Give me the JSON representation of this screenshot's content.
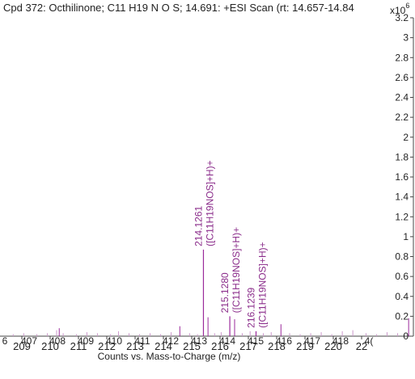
{
  "title": "Cpd 372: Octhilinone; C11 H19 N O S; 14.691: +ESI Scan (rt: 14.657-14.84",
  "y_multiplier": {
    "base": "x10",
    "exponent": "6"
  },
  "chart_data": {
    "type": "bar",
    "title": "Cpd 372: Octhilinone; C11 H19 N O S; 14.691: +ESI Scan (rt: 14.657-14.84",
    "xlabel": "Counts vs. Mass-to-Charge (m/z)",
    "ylabel": "",
    "xlim": [
      206.4,
      222.1
    ],
    "ylim": [
      0,
      3.2
    ],
    "y_ticks": [
      0,
      0.2,
      0.4,
      0.6,
      0.8,
      1,
      1.2,
      1.4,
      1.6,
      1.8,
      2,
      2.2,
      2.4,
      2.6,
      2.8,
      3,
      3.2
    ],
    "y_tick_labels": [
      "0",
      "0.2",
      "0.4",
      "0.6",
      "0.8",
      "1",
      "1.2",
      "1.4",
      "1.6",
      "1.8",
      "2",
      "2.2",
      "2.4",
      "2.6",
      "2.8",
      "3",
      "3.2"
    ],
    "x_ticks_lower": [
      209,
      210,
      211,
      212,
      213,
      214,
      215,
      216,
      217,
      218,
      219,
      220,
      22
    ],
    "x_ticks_upper": [
      "6",
      "407",
      "408",
      "409",
      "410",
      "411",
      "412",
      "413",
      "414",
      "415",
      "416",
      "417",
      "418",
      "4("
    ],
    "grid": false,
    "legend": "none",
    "peak_color": "#9b2a9b",
    "label_color": "#8a2b8a",
    "noise_color": "#cc99cc",
    "peaks": [
      {
        "mz": 214.1261,
        "intensity": 0.87,
        "label": "214.1261",
        "formula": "([C11H19NOS]+H)+"
      },
      {
        "mz": 215.128,
        "intensity": 0.2,
        "label": "215.1280",
        "formula": "([C11H19NOS]+H)+"
      },
      {
        "mz": 216.1239,
        "intensity": 0.05,
        "label": "216.1239",
        "formula": "([C11H19NOS]+H)+"
      }
    ],
    "minor_peaks": [
      {
        "mz": 214.3,
        "intensity": 0.19
      },
      {
        "mz": 215.31,
        "intensity": 0.17
      },
      {
        "mz": 217.07,
        "intensity": 0.12
      },
      {
        "mz": 213.23,
        "intensity": 0.1
      },
      {
        "mz": 221.92,
        "intensity": 0.18
      },
      {
        "mz": 208.65,
        "intensity": 0.08
      }
    ],
    "noise": [
      [
        206.9,
        0.02
      ],
      [
        207.3,
        0.03
      ],
      [
        207.8,
        0.02
      ],
      [
        208.2,
        0.03
      ],
      [
        208.55,
        0.06
      ],
      [
        208.8,
        0.03
      ],
      [
        209.3,
        0.02
      ],
      [
        209.7,
        0.04
      ],
      [
        210.1,
        0.03
      ],
      [
        210.6,
        0.02
      ],
      [
        210.9,
        0.05
      ],
      [
        211.3,
        0.03
      ],
      [
        211.7,
        0.02
      ],
      [
        212.1,
        0.03
      ],
      [
        212.5,
        0.02
      ],
      [
        212.9,
        0.04
      ],
      [
        213.6,
        0.03
      ],
      [
        213.9,
        0.02
      ],
      [
        214.55,
        0.03
      ],
      [
        214.8,
        0.04
      ],
      [
        215.6,
        0.03
      ],
      [
        215.9,
        0.05
      ],
      [
        216.4,
        0.03
      ],
      [
        216.7,
        0.04
      ],
      [
        217.4,
        0.03
      ],
      [
        217.8,
        0.02
      ],
      [
        218.2,
        0.03
      ],
      [
        218.6,
        0.04
      ],
      [
        219.0,
        0.02
      ],
      [
        219.4,
        0.05
      ],
      [
        219.8,
        0.06
      ],
      [
        220.3,
        0.03
      ],
      [
        220.7,
        0.02
      ],
      [
        221.1,
        0.04
      ],
      [
        221.5,
        0.03
      ]
    ]
  }
}
